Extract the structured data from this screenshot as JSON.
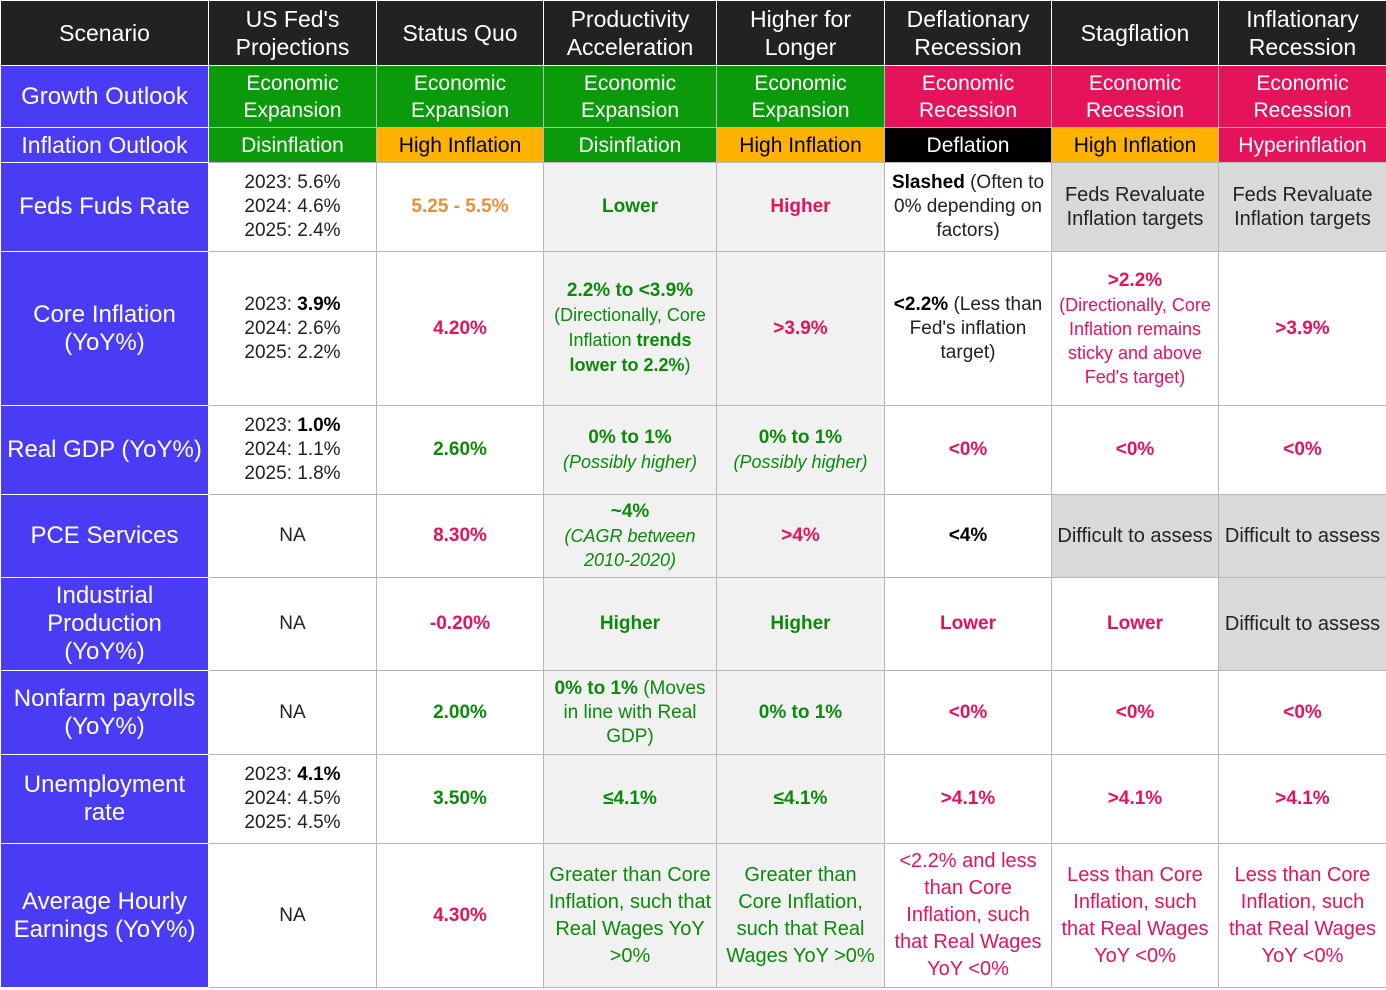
{
  "columns": [
    "Scenario",
    "US Fed's Projections",
    "Status Quo",
    "Productivity Acceleration",
    "Higher for Longer",
    "Deflationary Recession",
    "Stagflation",
    "Inflationary Recession"
  ],
  "growth": {
    "label": "Growth Outlook",
    "values": [
      "Economic Expansion",
      "Economic Expansion",
      "Economic Expansion",
      "Economic Expansion",
      "Economic Recession",
      "Economic Recession",
      "Economic Recession"
    ]
  },
  "inflation_outlook": {
    "label": "Inflation Outlook",
    "values": [
      "Disinflation",
      "High Inflation",
      "Disinflation",
      "High Inflation",
      "Deflation",
      "High Inflation",
      "Hyperinflation"
    ]
  },
  "rows": {
    "fed_rate": {
      "label": "Feds Fuds Rate",
      "fed": [
        "2023: 5.6%",
        "2024: 4.6%",
        "2025: 2.4%"
      ],
      "status_quo": "5.25 - 5.5%",
      "productivity": "Lower",
      "higher_longer": "Higher",
      "deflationary_bold": "Slashed",
      "deflationary_rest": " (Often to 0% depending on factors)",
      "stagflation": "Feds Revaluate Inflation targets",
      "inflationary": "Feds Revaluate Inflation targets"
    },
    "core_inflation": {
      "label": "Core Inflation (YoY%)",
      "fed_1_prefix": "2023: ",
      "fed_1_bold": "3.9%",
      "fed_2": "2024: 2.6%",
      "fed_3": "2025: 2.2%",
      "status_quo": "4.20%",
      "productivity_bold": "2.2% to <3.9%",
      "productivity_note_a": "(Directionally, Core Inflation ",
      "productivity_note_b": "trends lower to 2.2%",
      "productivity_note_c": ")",
      "higher_longer": ">3.9%",
      "deflationary_bold": "<2.2%",
      "deflationary_rest": " (Less than Fed's inflation target)",
      "stagflation_bold": ">2.2%",
      "stagflation_rest": "(Directionally, Core Inflation remains sticky and above Fed's target)",
      "inflationary": ">3.9%"
    },
    "real_gdp": {
      "label": "Real GDP (YoY%)",
      "fed_1_prefix": "2023: ",
      "fed_1_bold": "1.0%",
      "fed_2": "2024: 1.1%",
      "fed_3": "2025: 1.8%",
      "status_quo": "2.60%",
      "productivity": "0% to 1%",
      "productivity_note": "(Possibly higher)",
      "higher_longer": "0% to 1%",
      "higher_longer_note": "(Possibly higher)",
      "deflationary": "<0%",
      "stagflation": "<0%",
      "inflationary": "<0%"
    },
    "pce": {
      "label": "PCE Services",
      "fed": "NA",
      "status_quo": "8.30%",
      "productivity": "~4%",
      "productivity_note": "(CAGR between 2010-2020)",
      "higher_longer": ">4%",
      "deflationary": "<4%",
      "stagflation": "Difficult to assess",
      "inflationary": "Difficult to assess"
    },
    "industrial": {
      "label": "Industrial Production (YoY%)",
      "fed": "NA",
      "status_quo": "-0.20%",
      "productivity": "Higher",
      "higher_longer": "Higher",
      "deflationary": "Lower",
      "stagflation": "Lower",
      "inflationary": "Difficult to assess"
    },
    "nonfarm": {
      "label": "Nonfarm payrolls (YoY%)",
      "fed": "NA",
      "status_quo": "2.00%",
      "productivity_bold": "0% to 1%",
      "productivity_rest": "  (Moves in line with Real GDP)",
      "higher_longer": "0% to 1%",
      "deflationary": "<0%",
      "stagflation": "<0%",
      "inflationary": "<0%"
    },
    "unemployment": {
      "label": "Unemployment rate",
      "fed_1_prefix": "2023: ",
      "fed_1_bold": "4.1%",
      "fed_2": "2024: 4.5%",
      "fed_3": "2025: 4.5%",
      "status_quo": "3.50%",
      "productivity": "≤4.1%",
      "higher_longer": "≤4.1%",
      "deflationary": ">4.1%",
      "stagflation": ">4.1%",
      "inflationary": ">4.1%"
    },
    "earnings": {
      "label": "Average Hourly Earnings (YoY%)",
      "fed": "NA",
      "status_quo": "4.30%",
      "productivity": "Greater than Core Inflation, such that Real Wages  YoY >0%",
      "higher_longer": "Greater than Core Inflation, such that Real Wages  YoY >0%",
      "deflationary": "<2.2% and less than Core Inflation, such that Real Wages YoY <0%",
      "stagflation": "Less than Core Inflation, such that Real Wages YoY <0%",
      "inflationary": "Less than Core Inflation, such that Real Wages YoY <0%"
    }
  },
  "colors": {
    "header_bg": "#222222",
    "row_header_bg": "#4a3cf4",
    "expansion_green": "#0a9a0a",
    "recession_red": "#e4135a",
    "high_inflation_yellow": "#ffb300",
    "deflation_black": "#000000",
    "text_green": "#0b8a0b",
    "text_red": "#e4135a",
    "text_orange": "#e69138",
    "cell_grey": "#f1f1f1",
    "difficult_grey": "#d9d9d9"
  }
}
